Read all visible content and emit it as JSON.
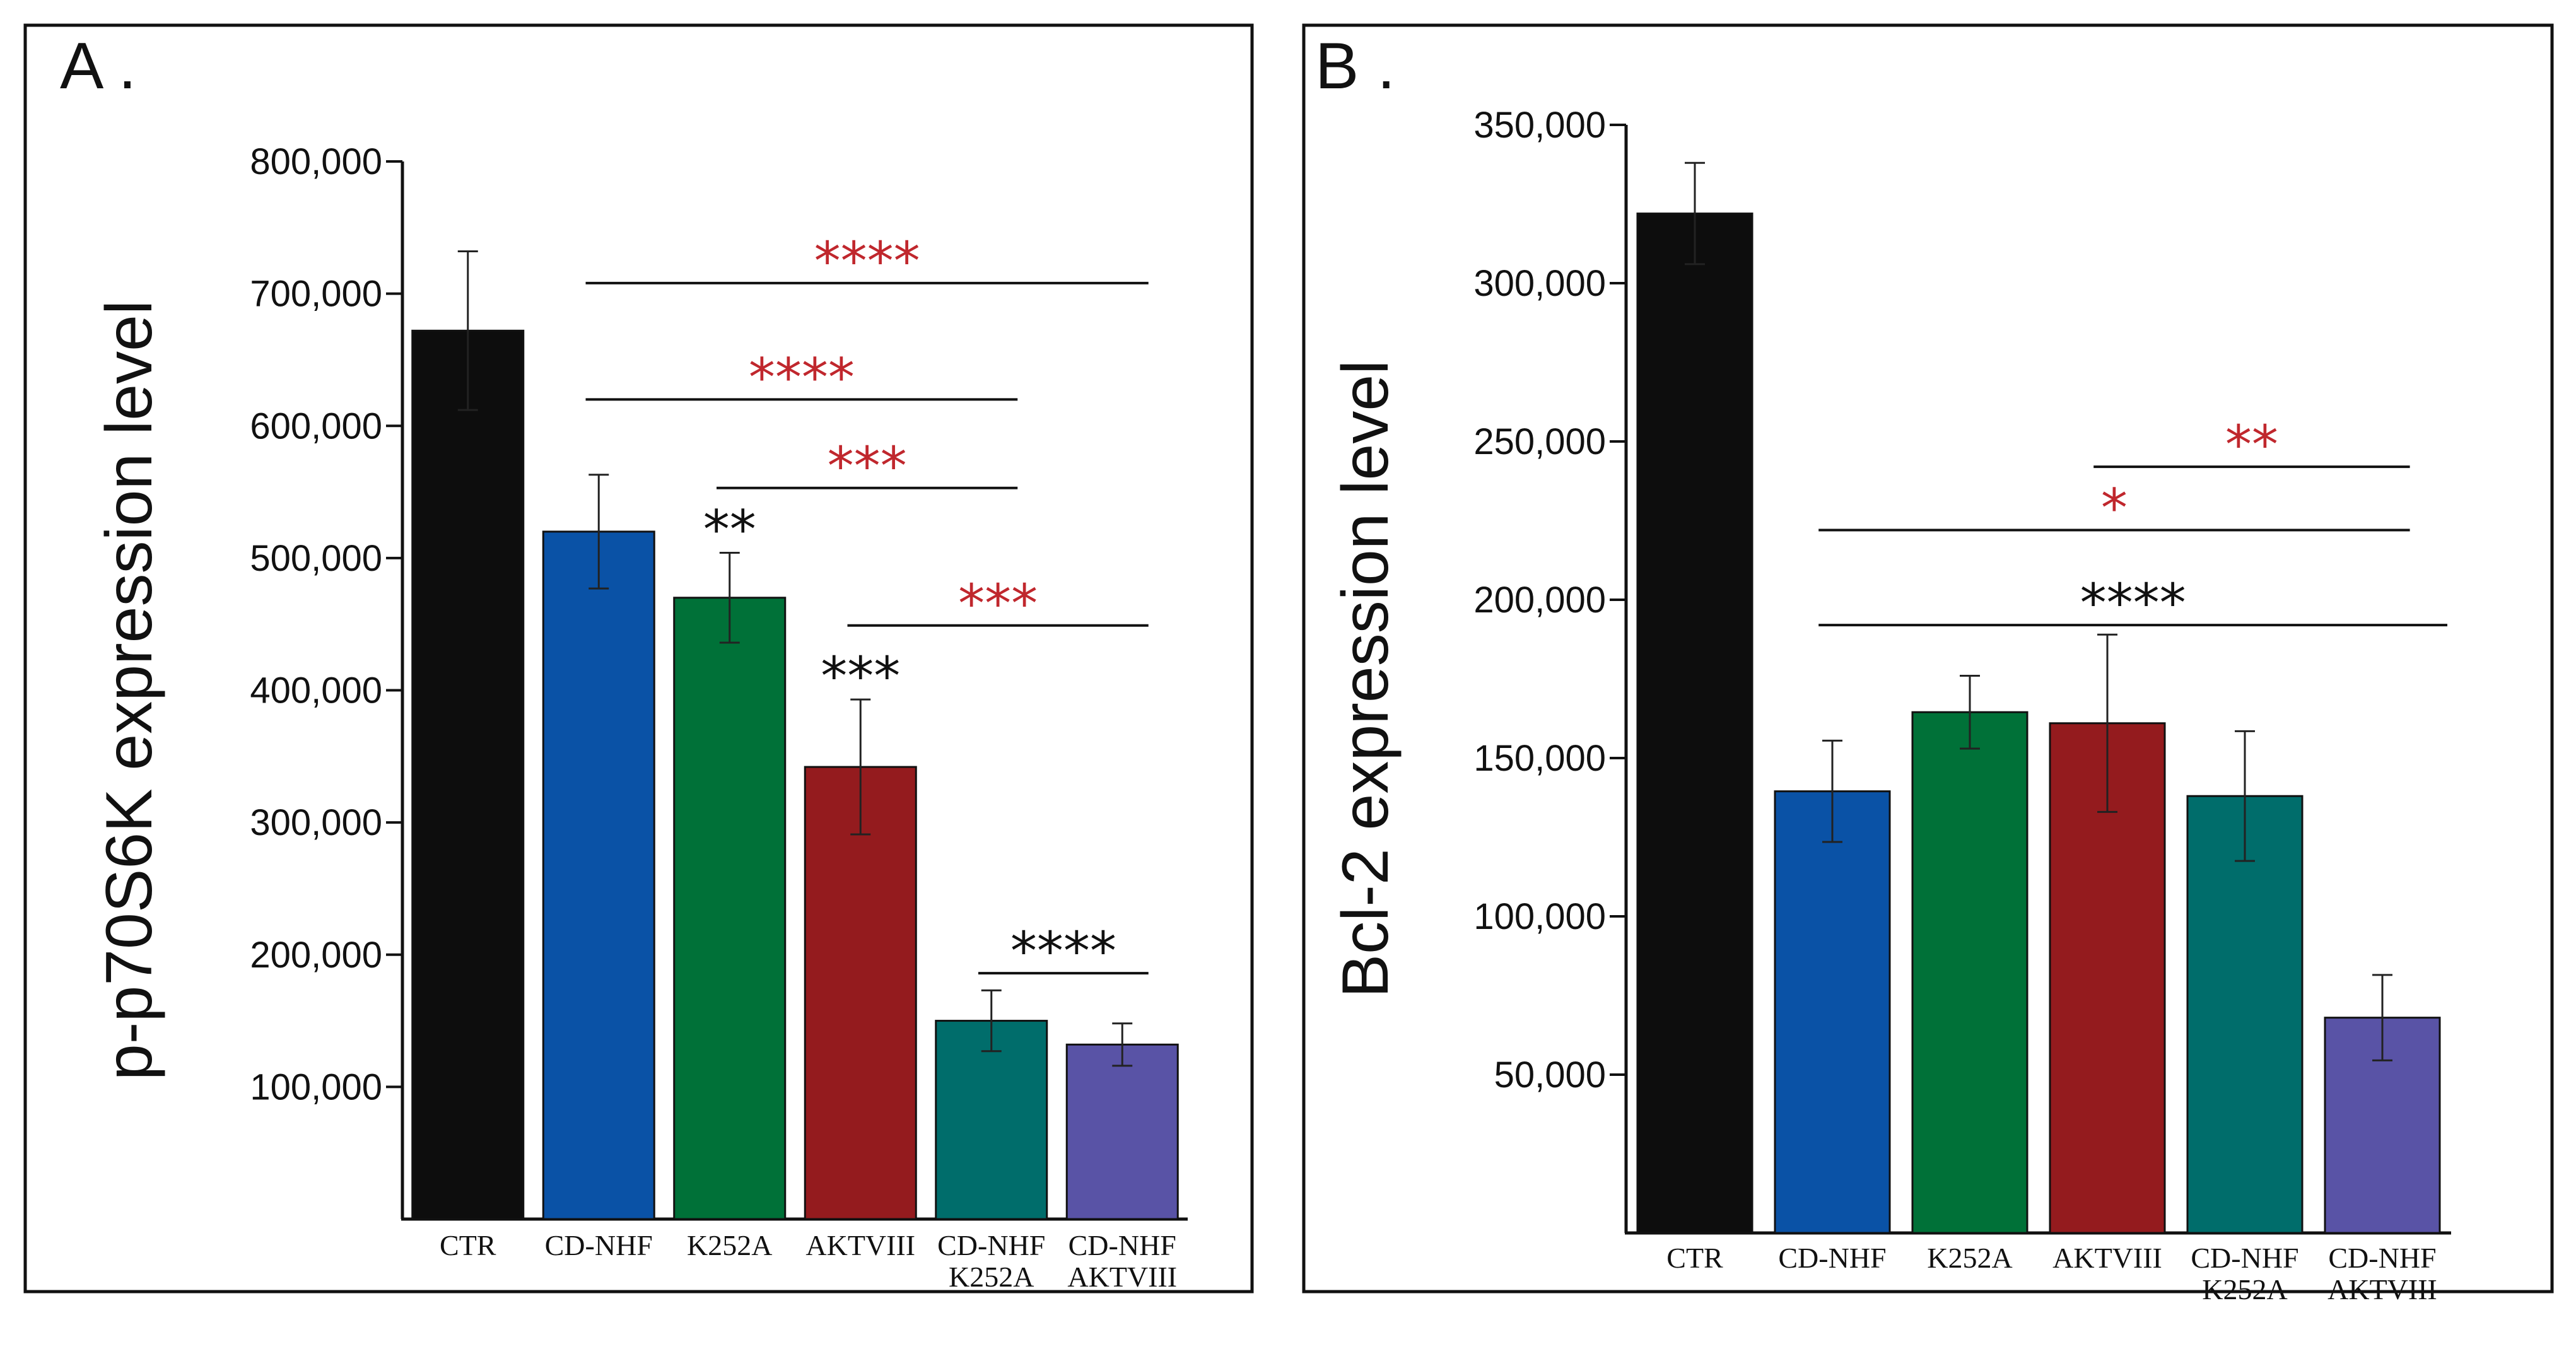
{
  "colors": {
    "ctr": "#0d0d0d",
    "cd_nhf": "#0a52a6",
    "k252a": "#007138",
    "aktviii": "#941b1e",
    "cd_nhf_k252a": "#006d6b",
    "cd_nhf_aktviii": "#5953a6",
    "sig_red": "#c0272d",
    "sig_black": "#111111"
  },
  "chart_data": [
    {
      "type": "bar",
      "panel_label": "A .",
      "ylabel": "p-p70S6K expression level",
      "ylim": [
        0,
        800000
      ],
      "yticks": [
        100000,
        200000,
        300000,
        400000,
        500000,
        600000,
        700000,
        800000
      ],
      "ytick_labels": [
        "100,000",
        "200,000",
        "300,000",
        "400,000",
        "500,000",
        "600,000",
        "700,000",
        "800,000"
      ],
      "categories": [
        {
          "lines": [
            "CTR"
          ],
          "color_key": "ctr"
        },
        {
          "lines": [
            "CD-NHF"
          ],
          "color_key": "cd_nhf"
        },
        {
          "lines": [
            "K252A"
          ],
          "color_key": "k252a"
        },
        {
          "lines": [
            "AKTVIII"
          ],
          "color_key": "aktviii"
        },
        {
          "lines": [
            "CD-NHF",
            "K252A"
          ],
          "color_key": "cd_nhf_k252a"
        },
        {
          "lines": [
            "CD-NHF",
            "AKTVIII"
          ],
          "color_key": "cd_nhf_aktviii"
        }
      ],
      "values": [
        672000,
        520000,
        470000,
        342000,
        150000,
        132000
      ],
      "errors": [
        60000,
        43000,
        34000,
        51000,
        23000,
        16000
      ],
      "bar_sig": [
        {
          "index": 2,
          "text": "**",
          "color_key": "sig_black"
        },
        {
          "index": 3,
          "text": "***",
          "color_key": "sig_black"
        }
      ],
      "brackets": [
        {
          "from": 1,
          "to": 5,
          "text": "****",
          "color_key": "sig_red",
          "level": 708000
        },
        {
          "from": 1,
          "to": 4,
          "text": "****",
          "color_key": "sig_red",
          "level": 620000
        },
        {
          "from": 2,
          "to": 4,
          "text": "***",
          "color_key": "sig_red",
          "level": 553000
        },
        {
          "from": 3,
          "to": 5,
          "text": "***",
          "color_key": "sig_red",
          "level": 449000
        },
        {
          "from": 4,
          "to": 5,
          "text": "****",
          "color_key": "sig_black",
          "level": 186000
        }
      ]
    },
    {
      "type": "bar",
      "panel_label": "B .",
      "ylabel": "Bcl-2 expression level",
      "ylim": [
        0,
        350000
      ],
      "yticks": [
        50000,
        100000,
        150000,
        200000,
        250000,
        300000,
        350000
      ],
      "ytick_labels": [
        "50,000",
        "100,000",
        "150,000",
        "200,000",
        "250,000",
        "300,000",
        "350,000"
      ],
      "categories": [
        {
          "lines": [
            "CTR"
          ],
          "color_key": "ctr"
        },
        {
          "lines": [
            "CD-NHF"
          ],
          "color_key": "cd_nhf"
        },
        {
          "lines": [
            "K252A"
          ],
          "color_key": "k252a"
        },
        {
          "lines": [
            "AKTVIII"
          ],
          "color_key": "aktviii"
        },
        {
          "lines": [
            "CD-NHF",
            "K252A"
          ],
          "color_key": "cd_nhf_k252a"
        },
        {
          "lines": [
            "CD-NHF",
            "AKTVIII"
          ],
          "color_key": "cd_nhf_aktviii"
        }
      ],
      "values": [
        322000,
        139500,
        164500,
        161000,
        138000,
        68000
      ],
      "errors": [
        16000,
        16000,
        11500,
        28000,
        20500,
        13500
      ],
      "bar_sig": [],
      "brackets": [
        {
          "from": 3,
          "to": 5,
          "text": "**",
          "color_key": "sig_red",
          "level": 242000
        },
        {
          "from": 1,
          "to": 5,
          "text": "*",
          "color_key": "sig_red",
          "level": 222000
        },
        {
          "from": 1,
          "to": 6,
          "text": "****",
          "color_key": "sig_black",
          "level": 192000
        }
      ]
    }
  ]
}
